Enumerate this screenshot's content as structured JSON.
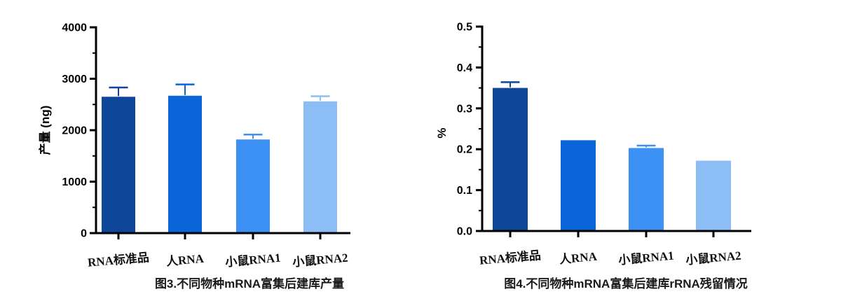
{
  "page": {
    "background": "#ffffff",
    "axis_color": "#000000"
  },
  "chart_data": [
    {
      "type": "bar",
      "title": "图3.不同物种mRNA富集后建库产量",
      "ylabel": "产量 (ng)",
      "xlabel": "",
      "categories": [
        "RNA标准品",
        "人RNA",
        "小鼠RNA1",
        "小鼠RNA2"
      ],
      "values": [
        2650,
        2670,
        1820,
        2560
      ],
      "errors_plus": [
        180,
        220,
        95,
        100
      ],
      "bar_colors": [
        "#0e4799",
        "#0a66d8",
        "#3d91f5",
        "#8cbef5"
      ],
      "ylim": [
        0,
        4000
      ],
      "ytick_step": 1000,
      "yminor_step": 500,
      "ytick_labels": [
        "0",
        "1000",
        "2000",
        "3000",
        "4000"
      ],
      "grid": false,
      "legend": null
    },
    {
      "type": "bar",
      "title": "图4.不同物种mRNA富集后建库rRNA残留情况",
      "ylabel": "%",
      "xlabel": "",
      "categories": [
        "RNA标准品",
        "人RNA",
        "小鼠RNA1",
        "小鼠RNA2"
      ],
      "values": [
        0.35,
        0.222,
        0.203,
        0.172
      ],
      "errors_plus": [
        0.014,
        0,
        0.006,
        0
      ],
      "bar_colors": [
        "#0e4799",
        "#0a66d8",
        "#3d91f5",
        "#8cbef5"
      ],
      "ylim": [
        0,
        0.5
      ],
      "ytick_step": 0.1,
      "yminor_step": 0.05,
      "ytick_labels": [
        "0.0",
        "0.1",
        "0.2",
        "0.3",
        "0.4",
        "0.5"
      ],
      "grid": false,
      "legend": null
    }
  ]
}
